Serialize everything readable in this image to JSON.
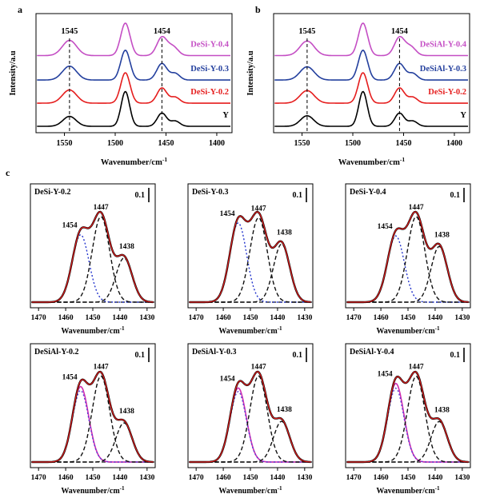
{
  "chart_data": {
    "type": "line",
    "panel_c_label": "c",
    "xlabel": {
      "text": "Wavenumber/cm",
      "sup": "-1"
    },
    "top": {
      "ylabel": "Intensity/a.u",
      "xmax": 1578,
      "xmin": 1385,
      "xticks": [
        1550,
        1500,
        1450,
        1400
      ],
      "guides": [
        {
          "x": 1545,
          "label": "1545"
        },
        {
          "x": 1454,
          "label": "1454"
        }
      ],
      "panels": [
        {
          "tag": "a",
          "curves": [
            {
              "label": "Y",
              "color": "#000000",
              "offset": 0,
              "peaks": [
                [
                  1545,
                  0.3,
                  6.5
                ],
                [
                  1490,
                  1.05,
                  4.2
                ],
                [
                  1454,
                  0.4,
                  4.6
                ],
                [
                  1441,
                  0.16,
                  4.5
                ]
              ]
            },
            {
              "label": "DeSi-Y-0.2",
              "color": "#e51d1d",
              "offset": 0.7,
              "peaks": [
                [
                  1545,
                  0.4,
                  7.0
                ],
                [
                  1490,
                  0.92,
                  4.6
                ],
                [
                  1454,
                  0.46,
                  4.8
                ],
                [
                  1441,
                  0.18,
                  4.5
                ]
              ]
            },
            {
              "label": "DeSi-Y-0.3",
              "color": "#24409e",
              "offset": 1.4,
              "peaks": [
                [
                  1545,
                  0.42,
                  7.0
                ],
                [
                  1490,
                  0.9,
                  4.6
                ],
                [
                  1454,
                  0.5,
                  5.0
                ],
                [
                  1441,
                  0.2,
                  4.5
                ]
              ]
            },
            {
              "label": "DeSi-Y-0.4",
              "color": "#c44ec4",
              "offset": 2.14,
              "peaks": [
                [
                  1545,
                  0.46,
                  7.0
                ],
                [
                  1490,
                  0.98,
                  4.6
                ],
                [
                  1454,
                  0.55,
                  5.0
                ],
                [
                  1443,
                  0.26,
                  5.0
                ]
              ]
            }
          ]
        },
        {
          "tag": "b",
          "curves": [
            {
              "label": "Y",
              "color": "#000000",
              "offset": 0,
              "peaks": [
                [
                  1545,
                  0.32,
                  6.5
                ],
                [
                  1490,
                  1.05,
                  4.2
                ],
                [
                  1454,
                  0.4,
                  4.6
                ],
                [
                  1441,
                  0.16,
                  4.5
                ]
              ]
            },
            {
              "label": "DeSi-Y-0.2",
              "color": "#e51d1d",
              "offset": 0.7,
              "peaks": [
                [
                  1545,
                  0.38,
                  7.0
                ],
                [
                  1490,
                  0.92,
                  4.6
                ],
                [
                  1454,
                  0.46,
                  4.8
                ],
                [
                  1441,
                  0.18,
                  4.5
                ]
              ]
            },
            {
              "label": "DeSiAl-Y-0.3",
              "color": "#24409e",
              "offset": 1.4,
              "peaks": [
                [
                  1545,
                  0.4,
                  7.0
                ],
                [
                  1490,
                  0.9,
                  4.6
                ],
                [
                  1454,
                  0.5,
                  5.0
                ],
                [
                  1441,
                  0.2,
                  4.5
                ]
              ]
            },
            {
              "label": "DeSiAl-Y-0.4",
              "color": "#c44ec4",
              "offset": 2.14,
              "peaks": [
                [
                  1545,
                  0.44,
                  7.0
                ],
                [
                  1490,
                  0.98,
                  4.6
                ],
                [
                  1454,
                  0.55,
                  5.0
                ],
                [
                  1443,
                  0.26,
                  5.0
                ]
              ]
            }
          ]
        }
      ]
    },
    "bottom": {
      "xmax": 1473,
      "xmin": 1427,
      "xticks": [
        1470,
        1460,
        1450,
        1440,
        1430
      ],
      "scale_bar": "0.1",
      "styles": {
        "bdot": {
          "color": "#2233cc",
          "dash": "2,2.6",
          "width": 1.4
        },
        "kdash": {
          "color": "#111111",
          "dash": "5,3",
          "width": 1.4
        },
        "mag": {
          "color": "#cf2db0",
          "dash": "",
          "width": 1.6
        },
        "pdot": {
          "color": "#5b3bd6",
          "dash": "2,2.6",
          "width": 1.4
        }
      },
      "sum": {
        "outer": "#000000",
        "inner": "#e51d1d"
      },
      "panels": [
        {
          "title": "DeSi-Y-0.2",
          "components": [
            {
              "c": 1454.5,
              "h": 0.52,
              "s": 3.1,
              "style": "bdot",
              "label": "1454",
              "ldx": 4
            },
            {
              "c": 1447.0,
              "h": 0.66,
              "s": 3.2,
              "style": "kdash",
              "label": "1447"
            },
            {
              "c": 1438.5,
              "h": 0.34,
              "s": 3.0,
              "style": "kdash",
              "label": "1438",
              "ldx": -1,
              "ldy": -3
            }
          ]
        },
        {
          "title": "DeSi-Y-0.3",
          "components": [
            {
              "c": 1454.5,
              "h": 0.6,
              "s": 3.1,
              "style": "bdot",
              "label": "1454",
              "ldx": 4
            },
            {
              "c": 1447.0,
              "h": 0.64,
              "s": 3.2,
              "style": "kdash",
              "label": "1447"
            },
            {
              "c": 1438.5,
              "h": 0.44,
              "s": 3.0,
              "style": "kdash",
              "label": "1438",
              "ldx": -1,
              "ldy": -3
            }
          ]
        },
        {
          "title": "DeSi-Y-0.4",
          "components": [
            {
              "c": 1454.5,
              "h": 0.62,
              "s": 3.1,
              "style": "bdot",
              "label": "1454",
              "ldx": 4
            },
            {
              "c": 1447.0,
              "h": 0.8,
              "s": 3.2,
              "style": "kdash",
              "label": "1447"
            },
            {
              "c": 1438.5,
              "h": 0.52,
              "s": 3.0,
              "style": "kdash",
              "label": "1438",
              "ldx": -1,
              "ldy": -3
            }
          ]
        },
        {
          "title": "DeSiAl-Y-0.2",
          "components": [
            {
              "c": 1454.5,
              "h": 0.58,
              "s": 3.0,
              "style": "mag",
              "label": "1454",
              "ldx": 4
            },
            {
              "c": 1454.5,
              "h": 0.55,
              "s": 3.0,
              "style": "pdot",
              "in_sum": false
            },
            {
              "c": 1447.0,
              "h": 0.66,
              "s": 3.2,
              "style": "kdash",
              "label": "1447"
            },
            {
              "c": 1438.5,
              "h": 0.3,
              "s": 3.0,
              "style": "kdash",
              "label": "1438",
              "ldx": -1,
              "ldy": -3
            }
          ]
        },
        {
          "title": "DeSiAl-Y-0.3",
          "components": [
            {
              "c": 1454.5,
              "h": 0.62,
              "s": 3.0,
              "style": "mag",
              "label": "1454",
              "ldx": 4
            },
            {
              "c": 1454.5,
              "h": 0.59,
              "s": 3.0,
              "style": "pdot",
              "in_sum": false
            },
            {
              "c": 1447.0,
              "h": 0.72,
              "s": 3.2,
              "style": "kdash",
              "label": "1447"
            },
            {
              "c": 1438.5,
              "h": 0.34,
              "s": 3.0,
              "style": "kdash",
              "label": "1438",
              "ldx": -1,
              "ldy": -3
            }
          ]
        },
        {
          "title": "DeSiAl-Y-0.4",
          "components": [
            {
              "c": 1454.5,
              "h": 0.66,
              "s": 3.0,
              "style": "mag",
              "label": "1454",
              "ldx": 4
            },
            {
              "c": 1454.5,
              "h": 0.62,
              "s": 3.0,
              "style": "pdot",
              "in_sum": false
            },
            {
              "c": 1447.0,
              "h": 0.72,
              "s": 3.2,
              "style": "kdash",
              "label": "1447"
            },
            {
              "c": 1438.5,
              "h": 0.34,
              "s": 3.0,
              "style": "kdash",
              "label": "1438",
              "ldx": -1,
              "ldy": -3
            }
          ]
        }
      ]
    }
  }
}
